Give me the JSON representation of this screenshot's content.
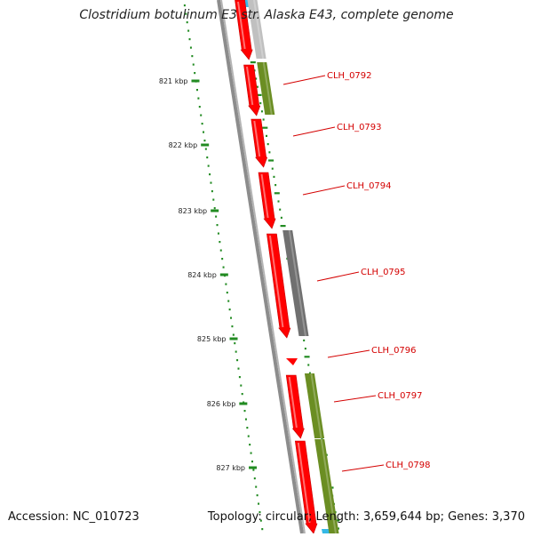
{
  "title": "Clostridium botulinum E3 str. Alaska E43, complete genome",
  "footer": {
    "accession": "Accession: NC_010723",
    "summary": "Topology: circular; Length: 3,659,644 bp; Genes: 3,370"
  },
  "scale_labels": [
    "821 kbp",
    "822 kbp",
    "823 kbp",
    "824 kbp",
    "825 kbp",
    "826 kbp",
    "827 kbp"
  ],
  "genes": [
    "CLH_0792",
    "CLH_0793",
    "CLH_0794",
    "CLH_0795",
    "CLH_0796",
    "CLH_0797",
    "CLH_0798"
  ],
  "colors": {
    "cds": "#ff0000",
    "cds_dark": "#c80000",
    "feature_olive": "#6b8e23",
    "feature_gray": "#707070",
    "feature_lightgray": "#c0c0c0",
    "backbone": "#8c8c8c",
    "ticks": "#228b22",
    "gene_label": "#d40000",
    "cyan": "#35b9e6"
  }
}
